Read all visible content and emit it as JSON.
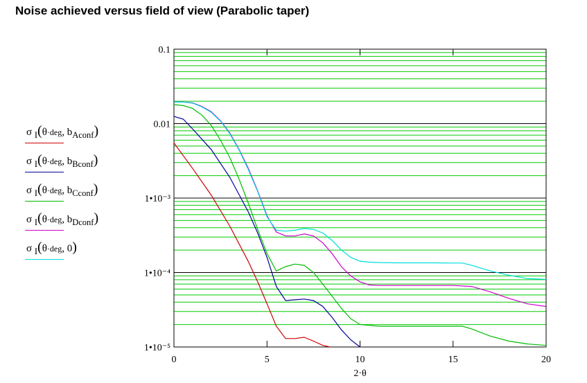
{
  "title": "Noise achieved versus field of view (Parabolic taper)",
  "chart_data": {
    "type": "line",
    "title": "Noise achieved versus field of view (Parabolic taper)",
    "xlabel": "2·θ",
    "ylabel": "",
    "xlim": [
      0,
      20
    ],
    "ylim": [
      1e-05,
      0.1
    ],
    "yscale": "log",
    "grid": true,
    "legend_position": "left",
    "x_ticks": [
      "0",
      "5",
      "10",
      "15",
      "20"
    ],
    "y_ticks": [
      "0.1",
      "0.01",
      "1•10⁻³",
      "1•10⁻⁴",
      "1•10⁻⁵"
    ],
    "series": [
      {
        "name": "σ_I(θ·deg, b_Aconf)",
        "color": "#cc0000",
        "x": [
          0,
          1,
          2,
          3,
          4,
          4.5,
          5,
          5.5,
          6,
          6.5,
          7,
          7.5,
          8,
          8.4
        ],
        "y": [
          0.0055,
          0.0025,
          0.0011,
          0.00042,
          0.00014,
          7.5e-05,
          3.8e-05,
          1.9e-05,
          1.3e-05,
          1.3e-05,
          1.35e-05,
          1.2e-05,
          1.05e-05,
          1e-05
        ]
      },
      {
        "name": "σ_I(θ·deg, b_Bconf)",
        "color": "#000099",
        "x": [
          0,
          0.5,
          1,
          2,
          3,
          4,
          4.5,
          5,
          5.5,
          6,
          6.5,
          7,
          7.5,
          8,
          8.5,
          9,
          9.5,
          10
        ],
        "y": [
          0.0125,
          0.0115,
          0.0085,
          0.0045,
          0.0019,
          0.00065,
          0.00034,
          0.00016,
          6.5e-05,
          4.2e-05,
          4.3e-05,
          4.4e-05,
          4.2e-05,
          3.5e-05,
          2.5e-05,
          1.7e-05,
          1.25e-05,
          1e-05
        ]
      },
      {
        "name": "σ_I(θ·deg, b_Cconf)",
        "color": "#00bb00",
        "x": [
          0,
          0.5,
          1,
          1.5,
          2,
          2.5,
          3,
          3.5,
          4,
          4.5,
          5,
          5.5,
          6,
          6.5,
          7,
          7.5,
          8,
          8.5,
          9,
          9.5,
          10,
          11,
          12,
          13,
          14,
          15,
          15.5,
          16,
          17,
          18,
          19,
          20
        ],
        "y": [
          0.018,
          0.0175,
          0.016,
          0.013,
          0.0095,
          0.006,
          0.0035,
          0.0018,
          0.00085,
          0.00038,
          0.00018,
          0.000105,
          0.00012,
          0.00013,
          0.000125,
          0.0001,
          7e-05,
          4.8e-05,
          3.3e-05,
          2.4e-05,
          2e-05,
          1.9e-05,
          1.9e-05,
          1.9e-05,
          1.9e-05,
          1.9e-05,
          1.9e-05,
          1.75e-05,
          1.4e-05,
          1.2e-05,
          1.1e-05,
          1.05e-05
        ]
      },
      {
        "name": "σ_I(θ·deg, b_Dconf)",
        "color": "#cc00cc",
        "x": [
          0,
          0.5,
          1,
          1.5,
          2,
          2.5,
          3,
          3.5,
          4,
          4.5,
          5,
          5.5,
          6,
          6.5,
          7,
          7.5,
          8,
          8.5,
          9,
          9.5,
          10,
          10.5,
          11,
          12,
          13,
          14,
          15,
          16,
          17,
          18,
          19,
          20
        ],
        "y": [
          0.0195,
          0.0195,
          0.019,
          0.017,
          0.0145,
          0.011,
          0.0075,
          0.0045,
          0.0025,
          0.00125,
          0.00058,
          0.00035,
          0.00031,
          0.00031,
          0.00033,
          0.00031,
          0.00025,
          0.00018,
          0.00012,
          9e-05,
          7.5e-05,
          6.8e-05,
          6.7e-05,
          6.7e-05,
          6.7e-05,
          6.7e-05,
          6.7e-05,
          6.5e-05,
          5.5e-05,
          4.5e-05,
          3.8e-05,
          3.5e-05
        ]
      },
      {
        "name": "σ_I(θ·deg, 0)",
        "color": "#00dddd",
        "x": [
          0,
          0.5,
          1,
          1.5,
          2,
          2.5,
          3,
          3.5,
          4,
          4.5,
          5,
          5.5,
          6,
          6.5,
          7,
          7.5,
          8,
          8.5,
          9,
          9.5,
          10,
          10.5,
          11,
          12,
          13,
          14,
          15,
          15.5,
          16,
          17,
          18,
          19,
          20
        ],
        "y": [
          0.0195,
          0.0195,
          0.0188,
          0.0168,
          0.0142,
          0.0108,
          0.0073,
          0.0044,
          0.0024,
          0.00122,
          0.00056,
          0.00037,
          0.00036,
          0.00037,
          0.00039,
          0.00038,
          0.00034,
          0.00027,
          0.0002,
          0.00016,
          0.000142,
          0.000138,
          0.000136,
          0.000135,
          0.000135,
          0.000135,
          0.000134,
          0.000134,
          0.000125,
          0.000105,
          9.2e-05,
          8.3e-05,
          8.1e-05
        ]
      }
    ]
  },
  "legend": [
    {
      "sigma": "σ",
      "sub_I": "I",
      "open": "(",
      "arg1": "θ",
      "dot": "·deg",
      "comma": ", ",
      "b": "b",
      "sub": "Aconf",
      "close": ")",
      "color": "#cc0000"
    },
    {
      "sigma": "σ",
      "sub_I": "I",
      "open": "(",
      "arg1": "θ",
      "dot": "·deg",
      "comma": ", ",
      "b": "b",
      "sub": "Bconf",
      "close": ")",
      "color": "#000099"
    },
    {
      "sigma": "σ",
      "sub_I": "I",
      "open": "(",
      "arg1": "θ",
      "dot": "·deg",
      "comma": ", ",
      "b": "b",
      "sub": "Cconf",
      "close": ")",
      "color": "#00bb00"
    },
    {
      "sigma": "σ",
      "sub_I": "I",
      "open": "(",
      "arg1": "θ",
      "dot": "·deg",
      "comma": ", ",
      "b": "b",
      "sub": "Dconf",
      "close": ")",
      "color": "#cc00cc"
    },
    {
      "sigma": "σ",
      "sub_I": "I",
      "open": "(",
      "arg1": "θ",
      "dot": "·deg",
      "comma": ", ",
      "b": "0",
      "sub": "",
      "close": ")",
      "color": "#00dddd"
    }
  ]
}
